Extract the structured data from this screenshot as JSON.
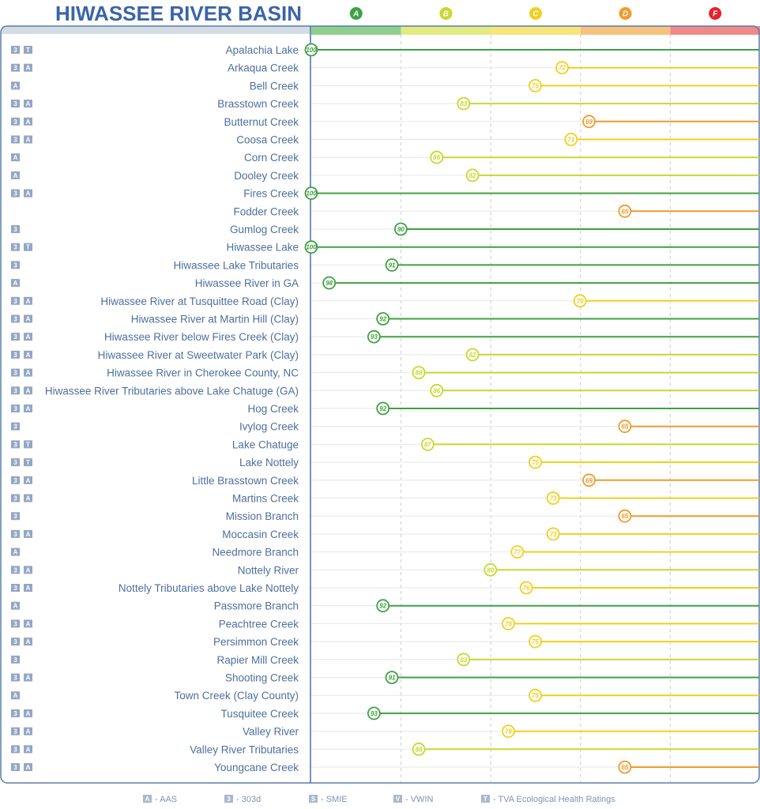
{
  "chart_data": {
    "type": "lollipop",
    "title": "HIWASSEE RIVER BASIN",
    "grades": [
      {
        "letter": "A",
        "color": "#3fa142",
        "band_color": "#8fcf8e"
      },
      {
        "letter": "B",
        "color": "#c8d82e",
        "band_color": "#e3ea82"
      },
      {
        "letter": "C",
        "color": "#f2cf1e",
        "band_color": "#f6e57a"
      },
      {
        "letter": "D",
        "color": "#f29a2b",
        "band_color": "#f7c27c"
      },
      {
        "letter": "F",
        "color": "#e3242b",
        "band_color": "#ef8a86"
      }
    ],
    "score_axis": {
      "left": 100,
      "right": 50
    },
    "rows": [
      {
        "name": "Apalachia Lake",
        "score": 100,
        "badges": [
          "3",
          "T"
        ]
      },
      {
        "name": "Arkaqua Creek",
        "score": 72,
        "badges": [
          "3",
          "A"
        ]
      },
      {
        "name": "Bell Creek",
        "score": 75,
        "badges": [
          "A"
        ]
      },
      {
        "name": "Brasstown Creek",
        "score": 83,
        "badges": [
          "3",
          "A"
        ]
      },
      {
        "name": "Butternut Creek",
        "score": 69,
        "badges": [
          "3",
          "A"
        ]
      },
      {
        "name": "Coosa Creek",
        "score": 71,
        "badges": [
          "3",
          "A"
        ]
      },
      {
        "name": "Corn Creek",
        "score": 86,
        "badges": [
          "A"
        ]
      },
      {
        "name": "Dooley Creek",
        "score": 82,
        "badges": [
          "A"
        ]
      },
      {
        "name": "Fires Creek",
        "score": 100,
        "badges": [
          "3",
          "A"
        ]
      },
      {
        "name": "Fodder Creek",
        "score": 65,
        "badges": []
      },
      {
        "name": "Gumlog Creek",
        "score": 90,
        "badges": [
          "3"
        ]
      },
      {
        "name": "Hiwassee Lake",
        "score": 100,
        "badges": [
          "3",
          "T"
        ]
      },
      {
        "name": "Hiwassee Lake Tributaries",
        "score": 91,
        "badges": [
          "3"
        ]
      },
      {
        "name": "Hiwassee River in GA",
        "score": 98,
        "badges": [
          "A"
        ]
      },
      {
        "name": "Hiwassee River at Tusquittee Road (Clay)",
        "score": 70,
        "badges": [
          "3",
          "A"
        ]
      },
      {
        "name": "Hiwassee River at Martin Hill (Clay)",
        "score": 92,
        "badges": [
          "3",
          "A"
        ]
      },
      {
        "name": "Hiwassee River below Fires Creek (Clay)",
        "score": 93,
        "badges": [
          "3",
          "A"
        ]
      },
      {
        "name": "Hiwassee River at Sweetwater Park (Clay)",
        "score": 82,
        "badges": [
          "3",
          "A"
        ]
      },
      {
        "name": "Hiwassee River in Cherokee County, NC",
        "score": 88,
        "badges": [
          "3",
          "A"
        ]
      },
      {
        "name": "Hiwassee River Tributaries above Lake Chatuge (GA)",
        "score": 86,
        "badges": [
          "3",
          "A"
        ]
      },
      {
        "name": "Hog Creek",
        "score": 92,
        "badges": [
          "3",
          "A"
        ]
      },
      {
        "name": "Ivylog Creek",
        "score": 65,
        "badges": [
          "3"
        ]
      },
      {
        "name": "Lake Chatuge",
        "score": 87,
        "badges": [
          "3",
          "T"
        ]
      },
      {
        "name": "Lake Nottely",
        "score": 75,
        "badges": [
          "3",
          "T"
        ]
      },
      {
        "name": "Little Brasstown Creek",
        "score": 69,
        "badges": [
          "3",
          "A"
        ]
      },
      {
        "name": "Martins Creek",
        "score": 73,
        "badges": [
          "3",
          "A"
        ]
      },
      {
        "name": "Mission Branch",
        "score": 65,
        "badges": [
          "3"
        ]
      },
      {
        "name": "Moccasin Creek",
        "score": 73,
        "badges": [
          "3",
          "A"
        ]
      },
      {
        "name": "Needmore Branch",
        "score": 77,
        "badges": [
          "A"
        ]
      },
      {
        "name": "Nottely River",
        "score": 80,
        "badges": [
          "3",
          "A"
        ]
      },
      {
        "name": "Nottely Tributaries above Lake Nottely",
        "score": 76,
        "badges": [
          "3",
          "A"
        ]
      },
      {
        "name": "Passmore Branch",
        "score": 92,
        "badges": [
          "A"
        ]
      },
      {
        "name": "Peachtree Creek",
        "score": 78,
        "badges": [
          "3",
          "A"
        ]
      },
      {
        "name": "Persimmon Creek",
        "score": 75,
        "badges": [
          "3",
          "A"
        ]
      },
      {
        "name": "Rapier Mill Creek",
        "score": 83,
        "badges": [
          "3"
        ]
      },
      {
        "name": "Shooting Creek",
        "score": 91,
        "badges": [
          "3",
          "A"
        ]
      },
      {
        "name": "Town Creek (Clay County)",
        "score": 75,
        "badges": [
          "A"
        ]
      },
      {
        "name": "Tusquitee Creek",
        "score": 93,
        "badges": [
          "3",
          "A"
        ]
      },
      {
        "name": "Valley River",
        "score": 78,
        "badges": [
          "3",
          "A"
        ]
      },
      {
        "name": "Valley River Tributaries",
        "score": 88,
        "badges": [
          "3",
          "A"
        ]
      },
      {
        "name": "Youngcane Creek",
        "score": 65,
        "badges": [
          "3",
          "A"
        ]
      }
    ],
    "legend": [
      {
        "key": "A",
        "label": "AAS"
      },
      {
        "key": "3",
        "label": "303d"
      },
      {
        "key": "S",
        "label": "SMIE"
      },
      {
        "key": "V",
        "label": "VWIN"
      },
      {
        "key": "T",
        "label": "TVA Ecological Health Ratings"
      }
    ]
  }
}
